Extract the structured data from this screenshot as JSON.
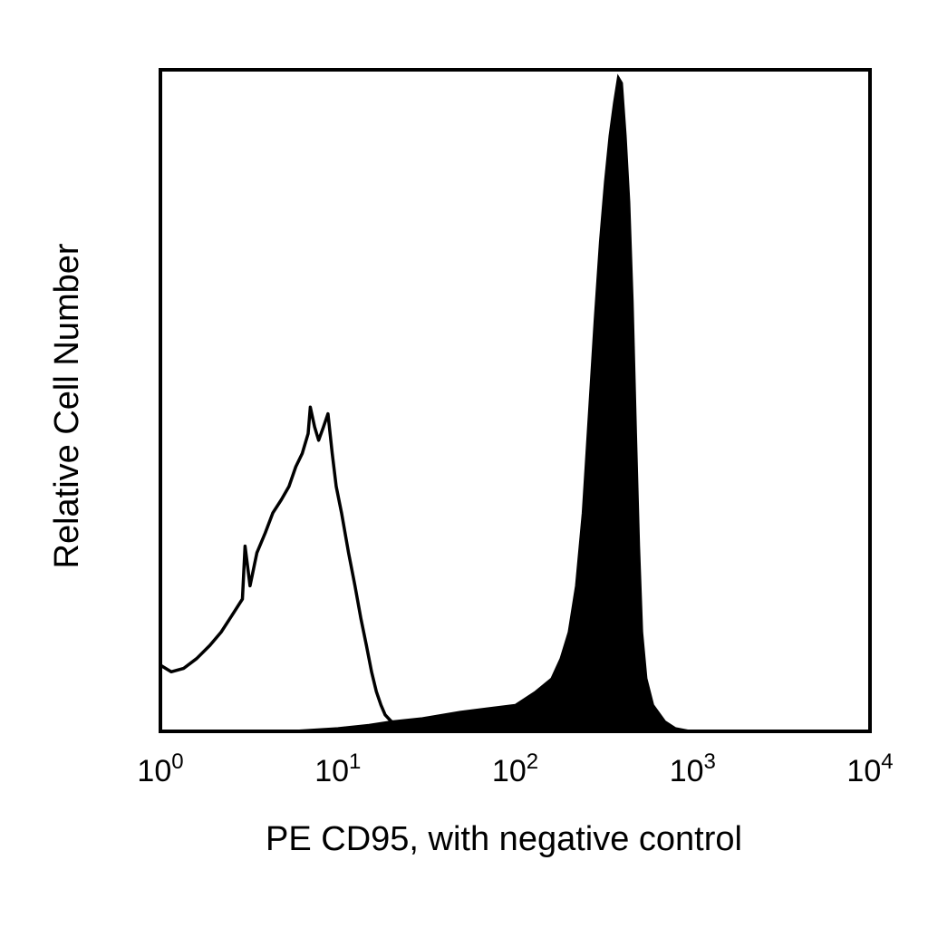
{
  "chart_data": {
    "type": "area",
    "title": "",
    "xlabel": "PE CD95, with negative control",
    "ylabel": "Relative Cell Number",
    "x_scale": "log",
    "xlim": [
      1,
      10000
    ],
    "ylim": [
      0,
      100
    ],
    "grid": false,
    "legend": "none",
    "x_ticks": [
      {
        "base": "10",
        "exp": "0",
        "value": 1
      },
      {
        "base": "10",
        "exp": "1",
        "value": 10
      },
      {
        "base": "10",
        "exp": "2",
        "value": 100
      },
      {
        "base": "10",
        "exp": "3",
        "value": 1000
      },
      {
        "base": "10",
        "exp": "4",
        "value": 10000
      }
    ],
    "series": [
      {
        "style": "outline",
        "color": "#000000",
        "x": [
          1.0,
          1.15,
          1.35,
          1.6,
          1.9,
          2.2,
          2.6,
          2.9,
          3.0,
          3.2,
          3.5,
          3.9,
          4.3,
          4.8,
          5.3,
          5.8,
          6.3,
          6.8,
          7.0,
          7.4,
          7.8,
          8.3,
          8.8,
          9.3,
          9.8,
          10.5,
          11.5,
          12.5,
          13.5,
          14.5,
          15.5,
          16.5,
          17.5,
          18.5,
          20,
          22,
          25,
          30
        ],
        "y": [
          10,
          9,
          9.5,
          11,
          13,
          15,
          18,
          20,
          28,
          22,
          27,
          30,
          33,
          35,
          37,
          40,
          42,
          45,
          49,
          46,
          44,
          46,
          48,
          42,
          37,
          33,
          27,
          22,
          17,
          13,
          9,
          6,
          4,
          2.5,
          1.5,
          1,
          0.5,
          0
        ]
      },
      {
        "style": "filled",
        "color": "#000000",
        "x": [
          1.0,
          2,
          5,
          10,
          15,
          20,
          30,
          50,
          70,
          100,
          130,
          160,
          180,
          200,
          220,
          240,
          260,
          280,
          300,
          320,
          340,
          360,
          380,
          400,
          420,
          440,
          460,
          480,
          500,
          520,
          550,
          600,
          700,
          800,
          1000
        ],
        "y": [
          0,
          0,
          0,
          0.5,
          1,
          1.5,
          2,
          3,
          3.5,
          4,
          6,
          8,
          11,
          15,
          22,
          33,
          48,
          62,
          74,
          83,
          90,
          95,
          99,
          98,
          90,
          80,
          65,
          45,
          28,
          15,
          8,
          4,
          1.5,
          0.5,
          0
        ]
      }
    ]
  }
}
